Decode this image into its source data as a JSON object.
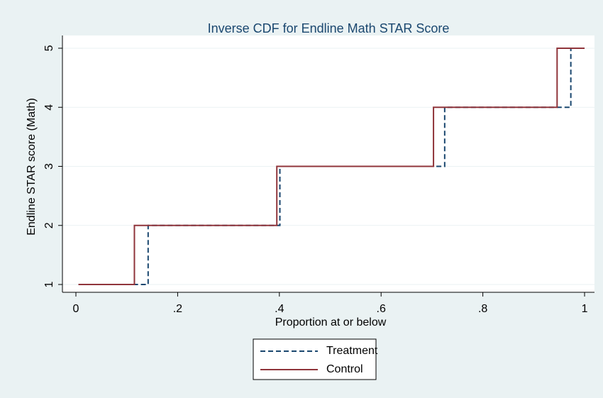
{
  "chart_data": {
    "type": "line",
    "step": true,
    "title": "Inverse CDF for Endline Math STAR Score",
    "x_label": "Proportion at or below",
    "y_label": "Endline STAR score (Math)",
    "series": [
      {
        "name": "Treatment",
        "color": "#1a476f",
        "dash": true,
        "x": [
          0.005,
          0.142,
          0.142,
          0.401,
          0.401,
          0.725,
          0.725,
          0.973,
          0.973,
          1
        ],
        "values": [
          1,
          1,
          2,
          2,
          3,
          3,
          4,
          4,
          5,
          5
        ]
      },
      {
        "name": "Control",
        "color": "#90353b",
        "dash": false,
        "x": [
          0.005,
          0.115,
          0.115,
          0.395,
          0.395,
          0.703,
          0.703,
          0.946,
          0.946,
          1
        ],
        "values": [
          1,
          1,
          2,
          2,
          3,
          3,
          4,
          4,
          5,
          5
        ]
      }
    ],
    "xlim": [
      -0.0265,
      1.0195
    ],
    "xticks": [
      0,
      {
        "value": 0.2,
        "label": ".2"
      },
      {
        "value": 0.4,
        "label": ".4"
      },
      {
        "value": 0.6,
        "label": ".6"
      },
      {
        "value": 0.8,
        "label": ".8"
      },
      1
    ],
    "ylim": [
      0.868,
      5.216
    ],
    "yticks": [
      1,
      2,
      3,
      4,
      5
    ],
    "grid": true,
    "legend": "bottom"
  }
}
